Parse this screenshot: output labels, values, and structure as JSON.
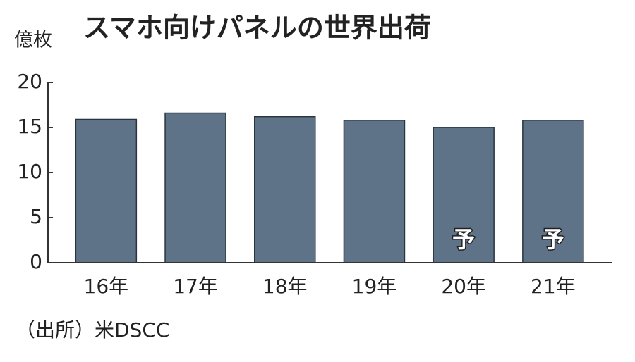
{
  "chart_data": {
    "type": "bar",
    "title": "スマホ向けパネルの世界出荷",
    "y_label": "億枚",
    "categories": [
      "16年",
      "17年",
      "18年",
      "19年",
      "20年",
      "21年"
    ],
    "values": [
      15.9,
      16.6,
      16.2,
      15.8,
      15.0,
      15.8
    ],
    "color": "#5e7388",
    "forecast_label": "予",
    "forecast": [
      false,
      false,
      false,
      false,
      true,
      true
    ],
    "ylim": [
      0,
      20
    ],
    "yticks": [
      0,
      5,
      10,
      15,
      20
    ],
    "grid": false,
    "source": "（出所）米DSCC"
  }
}
